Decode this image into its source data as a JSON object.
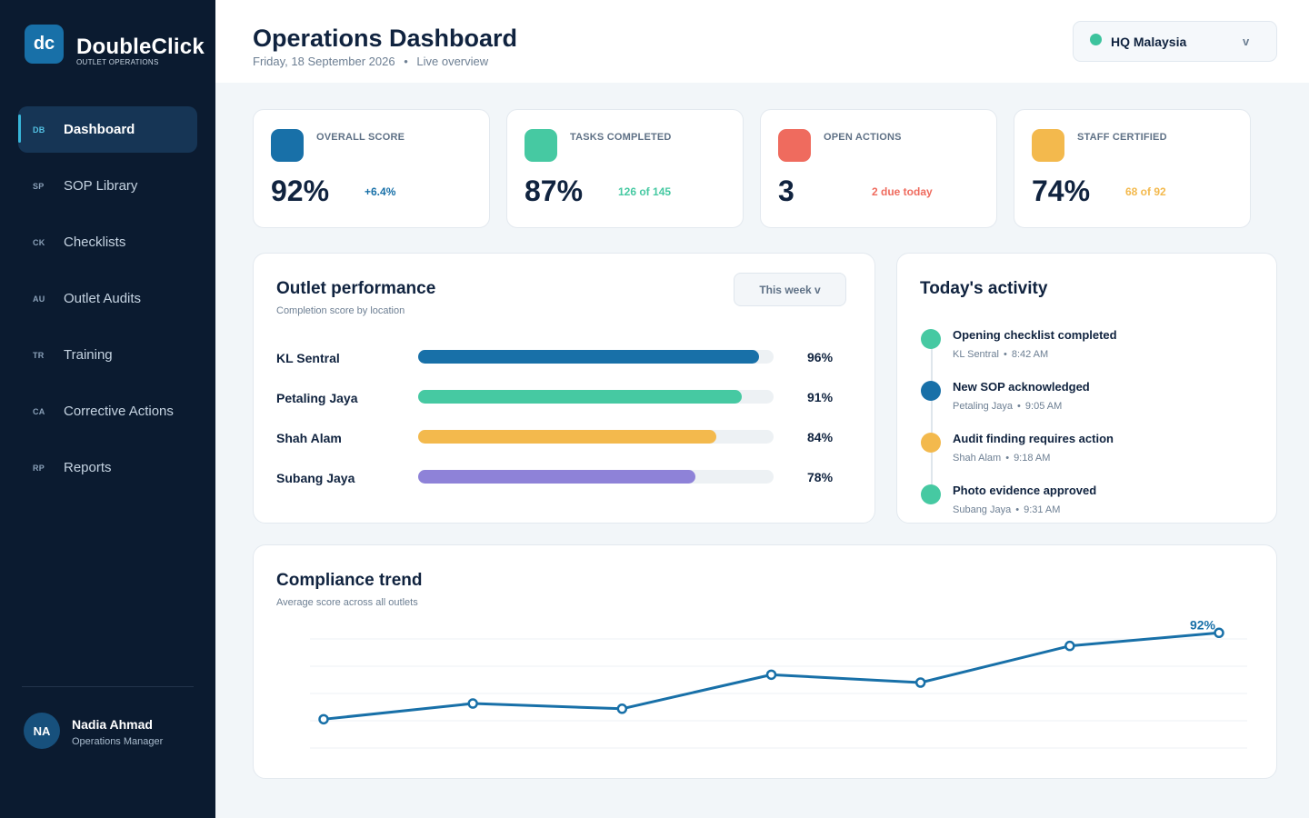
{
  "brand": {
    "logo": "dc",
    "name": "DoubleClick",
    "sub": "OUTLET OPERATIONS"
  },
  "nav": [
    {
      "code": "DB",
      "label": "Dashboard",
      "active": true
    },
    {
      "code": "SP",
      "label": "SOP Library"
    },
    {
      "code": "CK",
      "label": "Checklists"
    },
    {
      "code": "AU",
      "label": "Outlet Audits"
    },
    {
      "code": "TR",
      "label": "Training"
    },
    {
      "code": "CA",
      "label": "Corrective Actions"
    },
    {
      "code": "RP",
      "label": "Reports"
    }
  ],
  "user": {
    "initials": "NA",
    "name": "Nadia Ahmad",
    "role": "Operations Manager"
  },
  "header": {
    "title": "Operations Dashboard",
    "date": "Friday, 18 September 2026",
    "separator": "•",
    "mode": "Live overview",
    "location": "HQ Malaysia",
    "location_chevron": "v"
  },
  "kpis": [
    {
      "label": "OVERALL SCORE",
      "value": "92%",
      "note": "+6.4%",
      "color": "#1870a8"
    },
    {
      "label": "TASKS COMPLETED",
      "value": "87%",
      "note": "126 of 145",
      "color": "#46c9a2"
    },
    {
      "label": "OPEN ACTIONS",
      "value": "3",
      "note": "2 due today",
      "color": "#ef6b5e"
    },
    {
      "label": "STAFF CERTIFIED",
      "value": "74%",
      "note": "68 of 92",
      "color": "#f3b94d"
    }
  ],
  "performance": {
    "title": "Outlet performance",
    "subtitle": "Completion score by location",
    "period": "This week  v",
    "rows": [
      {
        "name": "KL Sentral",
        "value": 96,
        "pct": "96%",
        "color": "#1870a8"
      },
      {
        "name": "Petaling Jaya",
        "value": 91,
        "pct": "91%",
        "color": "#46c9a2"
      },
      {
        "name": "Shah Alam",
        "value": 84,
        "pct": "84%",
        "color": "#f3b94d"
      },
      {
        "name": "Subang Jaya",
        "value": 78,
        "pct": "78%",
        "color": "#8e82d8"
      }
    ]
  },
  "activity": {
    "title": "Today's activity",
    "items": [
      {
        "title": "Opening checklist completed",
        "location": "KL Sentral",
        "time": "8:42 AM",
        "color": "#46c9a2"
      },
      {
        "title": "New SOP acknowledged",
        "location": "Petaling Jaya",
        "time": "9:05 AM",
        "color": "#1870a8"
      },
      {
        "title": "Audit finding requires action",
        "location": "Shah Alam",
        "time": "9:18 AM",
        "color": "#f3b94d"
      },
      {
        "title": "Photo evidence approved",
        "location": "Subang Jaya",
        "time": "9:31 AM",
        "color": "#46c9a2"
      }
    ]
  },
  "trend": {
    "title": "Compliance trend",
    "subtitle": "Average score across all outlets",
    "end_label": "92%",
    "color": "#1870a8"
  },
  "chart_data": {
    "type": "line",
    "title": "Compliance trend",
    "subtitle": "Average score across all outlets",
    "xlabel": "",
    "ylabel": "",
    "x": [
      1,
      2,
      3,
      4,
      5,
      6,
      7
    ],
    "series": [
      {
        "values": [
          73,
          79,
          77,
          90,
          87,
          101,
          106
        ]
      }
    ],
    "ylim": [
      62,
      112
    ],
    "grid": true,
    "point_label": "92%"
  }
}
